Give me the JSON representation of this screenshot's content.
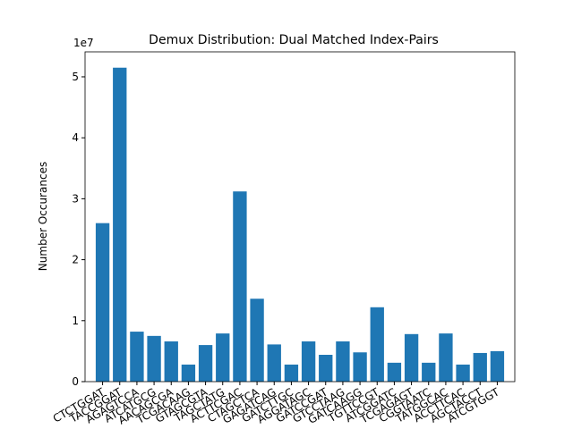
{
  "chart_data": {
    "type": "bar",
    "title": "Demux Distribution: Dual Matched Index-Pairs",
    "ylabel": "Number Occurances",
    "y_offset_label": "1e7",
    "categories": [
      "CTCTGGAT",
      "TACCGGAT",
      "AGAGTCCA",
      "ATCATGCG",
      "AACAGCGA",
      "TCGACAAG",
      "GTAGCGTA",
      "TAGCTATG",
      "ACTTCGAC",
      "CTAGCTCA",
      "GAGATCAG",
      "GATCTTGC",
      "AGGATAGC",
      "GATCCGAT",
      "GTCCTAAG",
      "GATCAAGG",
      "TGTTCCGT",
      "ATCGGATC",
      "TCGAGAGT",
      "CGGTAATC",
      "TATGGCAC",
      "ACCTTCAC",
      "AGCTACCT",
      "ATCGTGGT"
    ],
    "values": [
      2.6,
      5.15,
      0.82,
      0.75,
      0.66,
      0.28,
      0.6,
      0.79,
      3.12,
      1.36,
      0.61,
      0.28,
      0.66,
      0.44,
      0.66,
      0.48,
      1.22,
      0.31,
      0.78,
      0.31,
      0.79,
      0.28,
      0.47,
      0.5
    ],
    "color": "#1f77b4",
    "ylim": [
      0,
      5.41
    ],
    "yticks": [
      0,
      1,
      2,
      3,
      4,
      5
    ]
  }
}
